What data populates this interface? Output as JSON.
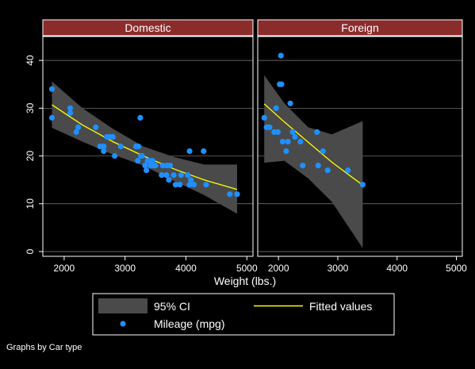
{
  "note": "Graphs by Car type",
  "legend": {
    "ci_label": "95% CI",
    "fit_label": "Fitted values",
    "points_label": "Mileage (mpg)"
  },
  "colors": {
    "background": "#000000",
    "panel_header": "#8b2c2c",
    "ci_band": "#4a4a4a",
    "fit_line": "#ffff00",
    "points": "#1e90ff",
    "grid": "#808080",
    "frame": "#ffffff"
  },
  "chart_data": {
    "type": "scatter",
    "xlabel": "Weight (lbs.)",
    "ylabel": "",
    "xlim": [
      1650,
      5100
    ],
    "ylim": [
      -1,
      45
    ],
    "xticks": [
      2000,
      3000,
      4000,
      5000
    ],
    "yticks": [
      0,
      10,
      20,
      30,
      40
    ],
    "grid": true,
    "legend_position": "bottom",
    "panels": [
      {
        "title": "Domestic",
        "points": [
          [
            1800,
            34
          ],
          [
            1800,
            28
          ],
          [
            2100,
            29
          ],
          [
            2100,
            30
          ],
          [
            2200,
            25
          ],
          [
            2230,
            26
          ],
          [
            2520,
            26
          ],
          [
            2590,
            22
          ],
          [
            2650,
            22
          ],
          [
            2650,
            21
          ],
          [
            2700,
            24
          ],
          [
            2750,
            24
          ],
          [
            2800,
            24
          ],
          [
            2830,
            20
          ],
          [
            2930,
            22
          ],
          [
            3180,
            22
          ],
          [
            3210,
            19
          ],
          [
            3220,
            22
          ],
          [
            3250,
            28
          ],
          [
            3260,
            20
          ],
          [
            3280,
            20
          ],
          [
            3330,
            18
          ],
          [
            3350,
            17
          ],
          [
            3370,
            19
          ],
          [
            3400,
            19
          ],
          [
            3420,
            18
          ],
          [
            3450,
            19
          ],
          [
            3470,
            18
          ],
          [
            3500,
            18
          ],
          [
            3600,
            16
          ],
          [
            3620,
            18
          ],
          [
            3680,
            16
          ],
          [
            3690,
            18
          ],
          [
            3720,
            15
          ],
          [
            3740,
            18
          ],
          [
            3800,
            16
          ],
          [
            3830,
            14
          ],
          [
            3900,
            14
          ],
          [
            3920,
            16
          ],
          [
            4030,
            16
          ],
          [
            4060,
            21
          ],
          [
            4060,
            14
          ],
          [
            4080,
            15
          ],
          [
            4130,
            14
          ],
          [
            4290,
            21
          ],
          [
            4330,
            14
          ],
          [
            4720,
            12
          ],
          [
            4840,
            12
          ]
        ],
        "fit": [
          [
            1800,
            30.7
          ],
          [
            2300,
            26.5
          ],
          [
            2800,
            23.0
          ],
          [
            3300,
            20.0
          ],
          [
            3800,
            17.3
          ],
          [
            4300,
            15.0
          ],
          [
            4840,
            13.0
          ]
        ],
        "ci_upper": [
          [
            1800,
            35.6
          ],
          [
            2300,
            30.0
          ],
          [
            2800,
            25.7
          ],
          [
            3300,
            22.0
          ],
          [
            3800,
            19.8
          ],
          [
            4300,
            18.2
          ],
          [
            4840,
            18.2
          ]
        ],
        "ci_lower": [
          [
            1800,
            25.9
          ],
          [
            2300,
            23.0
          ],
          [
            2800,
            20.3
          ],
          [
            3300,
            18.0
          ],
          [
            3800,
            14.8
          ],
          [
            4300,
            11.8
          ],
          [
            4840,
            7.9
          ]
        ]
      },
      {
        "title": "Foreign",
        "points": [
          [
            1760,
            28
          ],
          [
            1800,
            26
          ],
          [
            1850,
            26
          ],
          [
            1930,
            25
          ],
          [
            1960,
            30
          ],
          [
            1990,
            25
          ],
          [
            2020,
            35
          ],
          [
            2040,
            41
          ],
          [
            2050,
            35
          ],
          [
            2070,
            23
          ],
          [
            2130,
            21
          ],
          [
            2160,
            23
          ],
          [
            2200,
            31
          ],
          [
            2240,
            25
          ],
          [
            2280,
            24
          ],
          [
            2370,
            23
          ],
          [
            2410,
            18
          ],
          [
            2650,
            25
          ],
          [
            2670,
            18
          ],
          [
            2750,
            21
          ],
          [
            2830,
            17
          ],
          [
            3170,
            17
          ],
          [
            3420,
            14
          ]
        ],
        "fit": [
          [
            1760,
            30.9
          ],
          [
            2100,
            27.1
          ],
          [
            2500,
            22.9
          ],
          [
            2900,
            18.7
          ],
          [
            3420,
            13.9
          ]
        ],
        "ci_upper": [
          [
            1760,
            36.9
          ],
          [
            2100,
            31.0
          ],
          [
            2500,
            26.0
          ],
          [
            2900,
            24.5
          ],
          [
            3420,
            27.3
          ]
        ],
        "ci_lower": [
          [
            1760,
            18.6
          ],
          [
            2100,
            19.0
          ],
          [
            2500,
            15.3
          ],
          [
            2900,
            10.4
          ],
          [
            3420,
            0.7
          ]
        ]
      }
    ]
  }
}
